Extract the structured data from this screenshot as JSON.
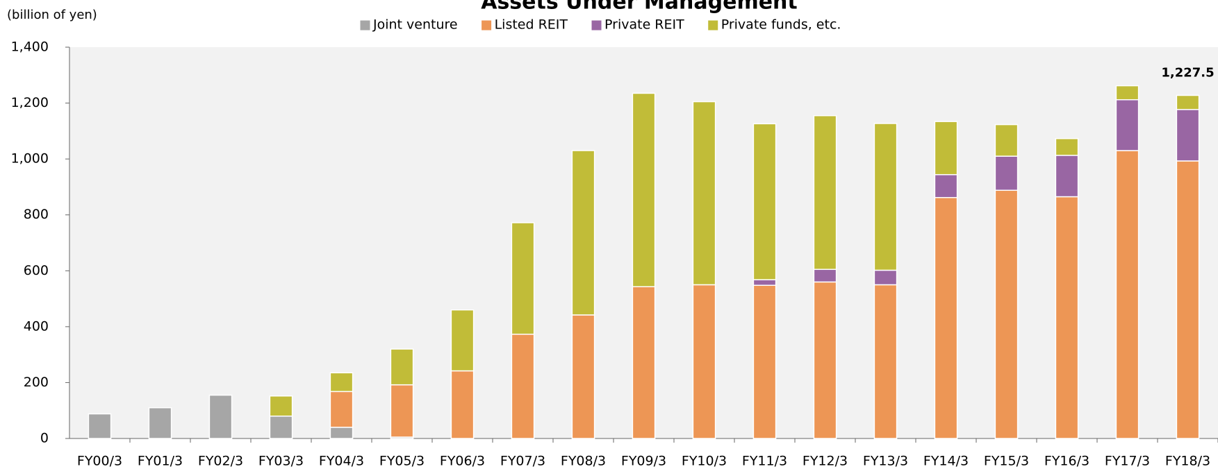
{
  "chart_data": {
    "type": "stacked_bar",
    "title": "Assets Under Management",
    "y_axis_label": "(billion of yen)",
    "categories": [
      "FY00/3",
      "FY01/3",
      "FY02/3",
      "FY03/3",
      "FY04/3",
      "FY05/3",
      "FY06/3",
      "FY07/3",
      "FY08/3",
      "FY09/3",
      "FY10/3",
      "FY11/3",
      "FY12/3",
      "FY13/3",
      "FY14/3",
      "FY15/3",
      "FY16/3",
      "FY17/3",
      "FY18/3"
    ],
    "series": [
      {
        "name": "Joint venture",
        "color": "#a6a6a6",
        "values": [
          88,
          110,
          155,
          80,
          40,
          5,
          null,
          null,
          null,
          null,
          null,
          null,
          null,
          null,
          null,
          null,
          null,
          null,
          null
        ]
      },
      {
        "name": "Listed REIT",
        "color": "#ed9655",
        "values": [
          null,
          null,
          null,
          null,
          128,
          187,
          242,
          373,
          442,
          543,
          550,
          548,
          560,
          550,
          862,
          888,
          865,
          1030,
          993
        ]
      },
      {
        "name": "Private REIT",
        "color": "#9966a3",
        "values": [
          null,
          null,
          null,
          null,
          null,
          null,
          null,
          null,
          null,
          null,
          null,
          20,
          45,
          52,
          82,
          122,
          148,
          182,
          184
        ]
      },
      {
        "name": "Private funds, etc.",
        "color": "#c1bc38",
        "values": [
          null,
          null,
          null,
          72,
          67,
          128,
          218,
          399,
          588,
          692,
          655,
          558,
          550,
          525,
          190,
          113,
          60,
          50,
          50.5
        ]
      }
    ],
    "annotations": [
      {
        "text": "1,227.5"
      }
    ],
    "ylim": [
      0,
      1400
    ],
    "yticks": [
      0,
      200,
      400,
      600,
      800,
      {
        "value": 1000,
        "label": "1,000"
      },
      {
        "value": 1200,
        "label": "1,200"
      },
      {
        "value": 1400,
        "label": "1,400"
      }
    ],
    "legend": "top",
    "plot_background": "#f2f2f2"
  }
}
